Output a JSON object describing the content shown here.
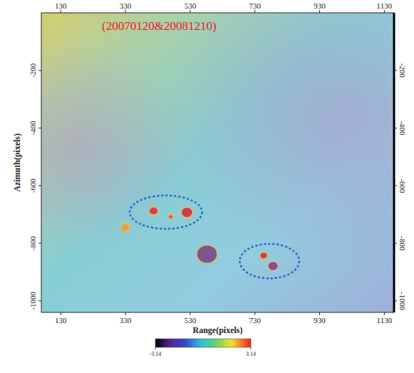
{
  "chart_data": {
    "type": "image",
    "title": "(20070120&20081210)",
    "x_label": "Range(pixels)",
    "y_label": "Azimuth(pixels)",
    "xlim": [
      70,
      1160
    ],
    "xticks": [
      130,
      330,
      530,
      730,
      930,
      1130
    ],
    "ylim": [
      -1040,
      0
    ],
    "yticks": [
      -200,
      -400,
      -600,
      -800,
      -1000
    ],
    "features": [
      {
        "x": 417,
        "y": -688,
        "r": 14,
        "color": "#e0304a"
      },
      {
        "x": 520,
        "y": -693,
        "r": 18,
        "color": "#d8284a"
      },
      {
        "x": 470,
        "y": -708,
        "r": 8,
        "color": "#e85050"
      },
      {
        "x": 757,
        "y": -843,
        "r": 12,
        "color": "#d83050"
      },
      {
        "x": 786,
        "y": -879,
        "r": 16,
        "color": "#8040a0"
      },
      {
        "x": 582,
        "y": -838,
        "r": 32,
        "color": "#7a4a8c"
      },
      {
        "x": 330,
        "y": -745,
        "r": 14,
        "color": "#e8a040"
      }
    ],
    "annotations": [
      {
        "x": 455,
        "y": -692,
        "rx": 112,
        "ry": 58,
        "color": "#2a62c8"
      },
      {
        "x": 775,
        "y": -862,
        "rx": 92,
        "ry": 60,
        "color": "#2a62c8"
      }
    ],
    "colorbar": {
      "range": [
        -3.14,
        3.14
      ],
      "ticks": [
        -3.14,
        3.14
      ]
    }
  }
}
